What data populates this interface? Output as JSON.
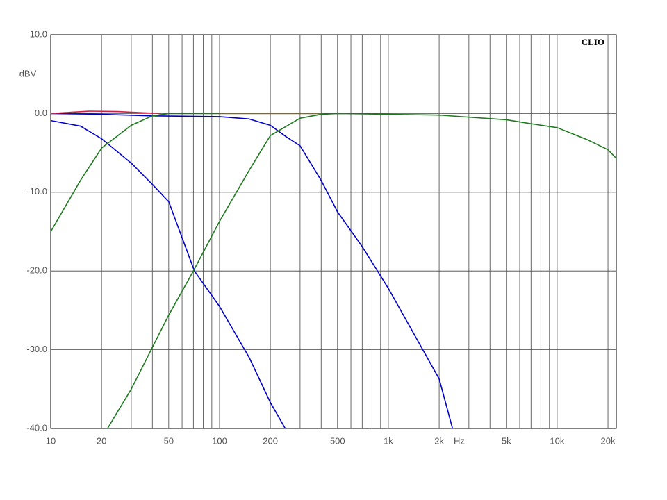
{
  "chart_data": {
    "type": "line",
    "badge": "CLIO",
    "x_label": "Hz",
    "y_label": "dBV",
    "log_x": true,
    "grid": true,
    "xlim": [
      10,
      22400
    ],
    "ylim": [
      -40,
      10
    ],
    "yticks": [
      {
        "value": 10,
        "label": "10.0"
      },
      {
        "value": 0,
        "label": "0.0"
      },
      {
        "value": -10,
        "label": "-10.0"
      },
      {
        "value": -20,
        "label": "-20.0"
      },
      {
        "value": -30,
        "label": "-30.0"
      },
      {
        "value": -40,
        "label": "-40.0"
      }
    ],
    "xticks": [
      10,
      20,
      50,
      100,
      200,
      500,
      {
        "value": 1000,
        "label": "1k"
      },
      {
        "value": 2000,
        "label": "2k"
      },
      {
        "value": 5000,
        "label": "5k"
      },
      {
        "value": 10000,
        "label": "10k"
      },
      {
        "value": 20000,
        "label": "20k"
      }
    ],
    "xminorticks": [
      30,
      40,
      60,
      70,
      80,
      90,
      300,
      400,
      600,
      700,
      800,
      900,
      3000,
      4000,
      6000,
      7000,
      8000,
      9000
    ],
    "series": [
      {
        "color": "#0000c8",
        "x": [
          10,
          15,
          20,
          30,
          40,
          50,
          71,
          100,
          150,
          200,
          245
        ],
        "values": [
          -0.9,
          -1.6,
          -3.2,
          -6.3,
          -9,
          -11.2,
          -20,
          -24.5,
          -31,
          -36.7,
          -40
        ]
      },
      {
        "color": "#0000c8",
        "x": [
          10,
          20,
          40,
          100,
          150,
          200,
          250,
          300,
          400,
          500,
          700,
          1000,
          2000,
          2400
        ],
        "values": [
          0,
          -0.1,
          -0.3,
          -0.4,
          -0.7,
          -1.5,
          -3,
          -4.1,
          -8.5,
          -12.5,
          -16.9,
          -22.2,
          -33.7,
          -40
        ]
      },
      {
        "color": "#1f7a1f",
        "x": [
          10,
          15,
          20,
          30,
          40,
          50,
          100
        ],
        "values": [
          -15,
          -8.5,
          -4.4,
          -1.5,
          -0.3,
          0,
          0
        ]
      },
      {
        "color": "#1f7a1f",
        "x": [
          21.7,
          30,
          50,
          70,
          100,
          150,
          200,
          300,
          400,
          500,
          2000,
          5000,
          7000,
          10000,
          15000,
          20000,
          22400
        ],
        "values": [
          -40,
          -35,
          -25.6,
          -20,
          -13.7,
          -7.2,
          -2.8,
          -0.6,
          -0.1,
          0,
          -0.2,
          -0.8,
          -1.3,
          -1.8,
          -3.3,
          -4.6,
          -5.7
        ]
      },
      {
        "color": "#d0204a",
        "x": [
          10,
          13,
          17,
          25,
          35,
          45
        ],
        "values": [
          0,
          0.15,
          0.3,
          0.25,
          0.1,
          0
        ]
      },
      {
        "color": "#806a20",
        "x": [
          100,
          200,
          300,
          400
        ],
        "values": [
          0,
          0,
          0,
          0
        ]
      }
    ]
  }
}
